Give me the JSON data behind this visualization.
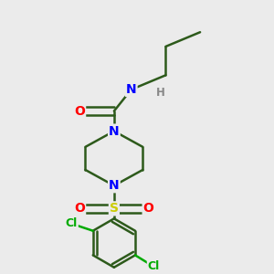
{
  "background_color": "#ebebeb",
  "bond_color": "#2d5a1b",
  "bond_width": 1.8,
  "atom_colors": {
    "O": "#ff0000",
    "N": "#0000ff",
    "S": "#cccc00",
    "Cl": "#00aa00",
    "H": "#888888",
    "C": "#2d5a1b"
  },
  "figsize": [
    3.0,
    3.0
  ],
  "dpi": 100
}
